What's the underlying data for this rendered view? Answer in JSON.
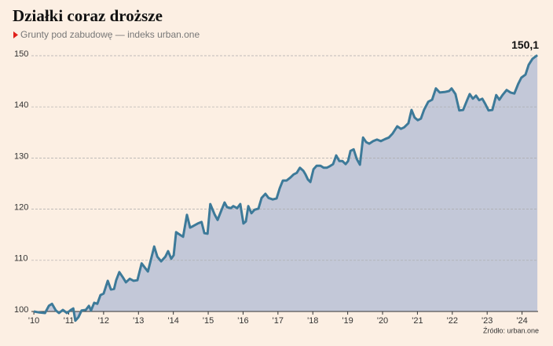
{
  "chart_data": {
    "type": "area",
    "title": "Działki coraz droższe",
    "subtitle": "Grunty pod zabudowę — indeks urban.one",
    "source": "Źródło: urban.one",
    "annotation": "150,1",
    "line_color": "#3d7a99",
    "fill_color": "#c3c8d8",
    "grid": true,
    "xlim": [
      2009.93,
      2024.46
    ],
    "ylim": [
      100,
      150
    ],
    "yticks": [
      100,
      110,
      120,
      130,
      140,
      150
    ],
    "xticks": [
      {
        "value": 2010,
        "label": "'10"
      },
      {
        "value": 2011,
        "label": "'11"
      },
      {
        "value": 2012,
        "label": "'12"
      },
      {
        "value": 2013,
        "label": "'13"
      },
      {
        "value": 2014,
        "label": "'14"
      },
      {
        "value": 2015,
        "label": "'15"
      },
      {
        "value": 2016,
        "label": "'16"
      },
      {
        "value": 2017,
        "label": "'17"
      },
      {
        "value": 2018,
        "label": "'18"
      },
      {
        "value": 2019,
        "label": "'19"
      },
      {
        "value": 2020,
        "label": "'20"
      },
      {
        "value": 2021,
        "label": "'21"
      },
      {
        "value": 2022,
        "label": "'22"
      },
      {
        "value": 2023,
        "label": "'23"
      },
      {
        "value": 2024,
        "label": "'24"
      }
    ],
    "x": [
      2010.0,
      2010.16,
      2010.32,
      2010.43,
      2010.52,
      2010.63,
      2010.72,
      2010.83,
      2010.95,
      2011.06,
      2011.13,
      2011.19,
      2011.28,
      2011.37,
      2011.49,
      2011.58,
      2011.64,
      2011.73,
      2011.82,
      2011.91,
      2012.0,
      2012.12,
      2012.21,
      2012.3,
      2012.36,
      2012.45,
      2012.55,
      2012.64,
      2012.75,
      2012.86,
      2012.97,
      2013.09,
      2013.18,
      2013.27,
      2013.45,
      2013.54,
      2013.65,
      2013.77,
      2013.85,
      2013.94,
      2014.01,
      2014.08,
      2014.19,
      2014.28,
      2014.39,
      2014.48,
      2014.57,
      2014.7,
      2014.81,
      2014.89,
      2014.98,
      2015.06,
      2015.18,
      2015.27,
      2015.38,
      2015.47,
      2015.54,
      2015.65,
      2015.72,
      2015.83,
      2015.92,
      2016.01,
      2016.08,
      2016.15,
      2016.24,
      2016.33,
      2016.44,
      2016.53,
      2016.64,
      2016.73,
      2016.85,
      2016.96,
      2017.05,
      2017.14,
      2017.25,
      2017.36,
      2017.45,
      2017.54,
      2017.63,
      2017.73,
      2017.79,
      2017.86,
      2017.93,
      2018.02,
      2018.11,
      2018.22,
      2018.31,
      2018.4,
      2018.49,
      2018.58,
      2018.67,
      2018.76,
      2018.85,
      2018.94,
      2019.01,
      2019.08,
      2019.17,
      2019.26,
      2019.35,
      2019.44,
      2019.53,
      2019.62,
      2019.73,
      2019.84,
      2019.95,
      2020.07,
      2020.18,
      2020.29,
      2020.42,
      2020.53,
      2020.62,
      2020.74,
      2020.83,
      2020.92,
      2021.01,
      2021.1,
      2021.19,
      2021.31,
      2021.42,
      2021.53,
      2021.64,
      2021.78,
      2021.91,
      2021.98,
      2022.09,
      2022.2,
      2022.31,
      2022.43,
      2022.5,
      2022.59,
      2022.68,
      2022.77,
      2022.86,
      2022.95,
      2023.04,
      2023.15,
      2023.26,
      2023.35,
      2023.44,
      2023.56,
      2023.67,
      2023.78,
      2023.89,
      2023.98,
      2024.1,
      2024.19,
      2024.3,
      2024.44
    ],
    "values": [
      100.0,
      99.8,
      99.7,
      101.1,
      101.5,
      100.2,
      99.7,
      100.3,
      99.7,
      100.3,
      100.6,
      98.2,
      98.9,
      100.2,
      100.3,
      101.1,
      100.2,
      101.7,
      101.5,
      103.2,
      103.5,
      106.0,
      104.3,
      104.4,
      106.1,
      107.7,
      106.7,
      105.7,
      106.4,
      106.0,
      106.1,
      109.4,
      108.6,
      107.8,
      112.7,
      110.7,
      109.8,
      110.7,
      111.8,
      110.3,
      111.0,
      115.5,
      115.0,
      114.6,
      118.9,
      116.4,
      116.7,
      117.2,
      117.5,
      115.3,
      115.2,
      121.0,
      119.0,
      117.9,
      119.8,
      121.3,
      120.4,
      120.2,
      120.6,
      120.2,
      121.0,
      117.2,
      117.6,
      120.6,
      119.2,
      119.9,
      120.1,
      122.2,
      123.0,
      122.2,
      121.9,
      122.1,
      124.1,
      125.6,
      125.6,
      126.2,
      126.8,
      127.1,
      128.1,
      127.5,
      126.8,
      125.8,
      125.3,
      127.8,
      128.5,
      128.5,
      128.1,
      128.1,
      128.4,
      128.8,
      130.5,
      129.4,
      129.4,
      128.8,
      129.4,
      131.4,
      131.7,
      129.8,
      128.7,
      134.0,
      133.1,
      132.8,
      133.3,
      133.6,
      133.3,
      133.7,
      134.0,
      134.8,
      136.2,
      135.7,
      136.0,
      136.8,
      139.4,
      137.9,
      137.4,
      137.7,
      139.4,
      141.0,
      141.4,
      143.6,
      142.8,
      142.9,
      143.1,
      143.6,
      142.5,
      139.3,
      139.4,
      141.4,
      142.5,
      141.6,
      142.2,
      141.3,
      141.6,
      140.5,
      139.3,
      139.4,
      142.3,
      141.4,
      142.3,
      143.3,
      142.8,
      142.6,
      144.5,
      145.7,
      146.3,
      148.2,
      149.4,
      150.1
    ]
  }
}
